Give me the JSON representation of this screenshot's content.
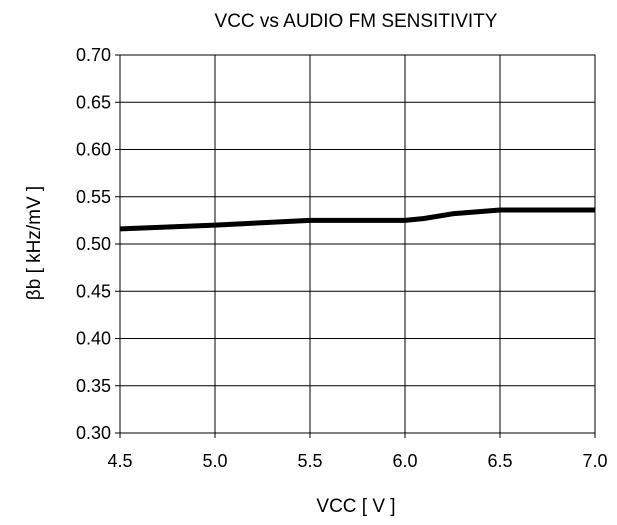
{
  "chart_data": {
    "type": "line",
    "title": "VCC vs AUDIO FM SENSITIVITY",
    "xlabel": "VCC [ V ]",
    "ylabel": "βb [ kHz/mV ]",
    "xlim": [
      4.5,
      7.0
    ],
    "ylim": [
      0.3,
      0.7
    ],
    "x_ticks": [
      "4.5",
      "5.0",
      "5.5",
      "6.0",
      "6.5",
      "7.0"
    ],
    "y_ticks": [
      "0.70",
      "0.65",
      "0.60",
      "0.55",
      "0.50",
      "0.45",
      "0.40",
      "0.35",
      "0.30"
    ],
    "grid": true,
    "legend": "none",
    "series": [
      {
        "x": [
          4.5,
          5.0,
          5.5,
          6.0,
          6.1,
          6.25,
          6.5,
          7.0
        ],
        "y": [
          0.516,
          0.52,
          0.525,
          0.525,
          0.527,
          0.532,
          0.536,
          0.536
        ],
        "color": "#000000"
      }
    ]
  }
}
